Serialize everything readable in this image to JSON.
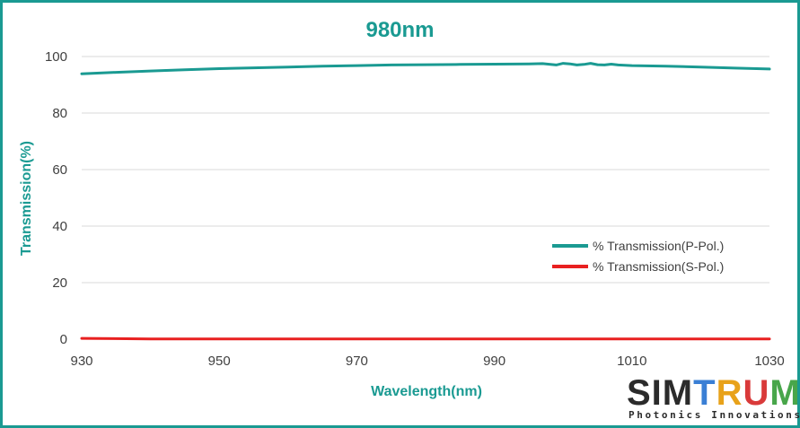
{
  "chart_data": {
    "type": "line",
    "title": "980nm",
    "xlabel": "Wavelength(nm)",
    "ylabel": "Transmission(%)",
    "xlim": [
      930,
      1030
    ],
    "ylim": [
      0,
      100
    ],
    "xticks": [
      930,
      950,
      970,
      990,
      1010,
      1030
    ],
    "yticks": [
      0,
      20,
      40,
      60,
      80,
      100
    ],
    "grid": "horizontal",
    "legend_position": "right-middle",
    "series": [
      {
        "name": "% Transmission(P-Pol.)",
        "color": "#1a9a92",
        "x": [
          930,
          935,
          940,
          945,
          950,
          955,
          960,
          965,
          970,
          975,
          980,
          985,
          990,
          995,
          997,
          999,
          1000,
          1001,
          1002,
          1003,
          1004,
          1005,
          1006,
          1007,
          1008,
          1010,
          1015,
          1020,
          1025,
          1030
        ],
        "y": [
          93.9,
          94.4,
          94.9,
          95.3,
          95.7,
          96.0,
          96.3,
          96.6,
          96.8,
          97.0,
          97.1,
          97.2,
          97.3,
          97.4,
          97.5,
          97.0,
          97.6,
          97.4,
          97.0,
          97.2,
          97.6,
          97.1,
          97.0,
          97.3,
          97.0,
          96.8,
          96.6,
          96.3,
          95.9,
          95.6
        ]
      },
      {
        "name": "% Transmission(S-Pol.)",
        "color": "#e82020",
        "x": [
          930,
          940,
          950,
          960,
          970,
          980,
          990,
          1000,
          1010,
          1020,
          1030
        ],
        "y": [
          0.3,
          0.1,
          0.1,
          0.1,
          0.1,
          0.1,
          0.1,
          0.1,
          0.1,
          0.1,
          0.1
        ]
      }
    ]
  },
  "logo": {
    "word_sim": "SIM",
    "word_t": "T",
    "word_r": "R",
    "word_u": "U",
    "word_m": "M",
    "tagline": "Photonics Innovations"
  }
}
